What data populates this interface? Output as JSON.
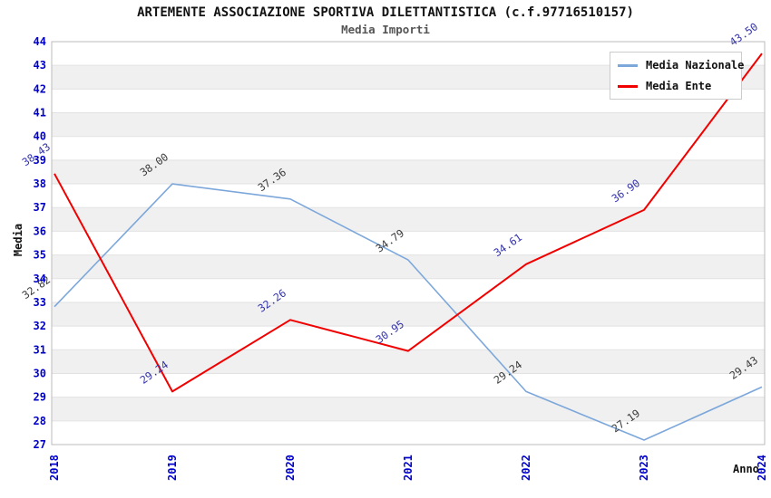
{
  "chart_data": {
    "type": "line",
    "title": "ARTEMENTE ASSOCIAZIONE SPORTIVA DILETTANTISTICA (c.f.97716510157)",
    "subtitle": "Media Importi",
    "xlabel": "Anno",
    "ylabel": "Media",
    "categories": [
      "2018",
      "2019",
      "2020",
      "2021",
      "2022",
      "2023",
      "2024"
    ],
    "series": [
      {
        "name": "Media Nazionale",
        "color": "#7CA7DB",
        "label_color": "#3a3a3a",
        "values": [
          32.82,
          38.0,
          37.36,
          34.79,
          29.24,
          27.19,
          29.43
        ]
      },
      {
        "name": "Media Ente",
        "color": "#F10000",
        "label_color": "#3333aa",
        "values": [
          38.43,
          29.24,
          32.26,
          30.95,
          34.61,
          36.9,
          43.5
        ]
      }
    ],
    "ylim": [
      27,
      44
    ],
    "ytick_step": 1,
    "grid": true,
    "legend_position": "top-right",
    "axis_tick_color": "#0000CC",
    "band_color": "#f0f0f0",
    "grid_color": "#e2e2e2",
    "border_color": "#bbbbbb"
  }
}
